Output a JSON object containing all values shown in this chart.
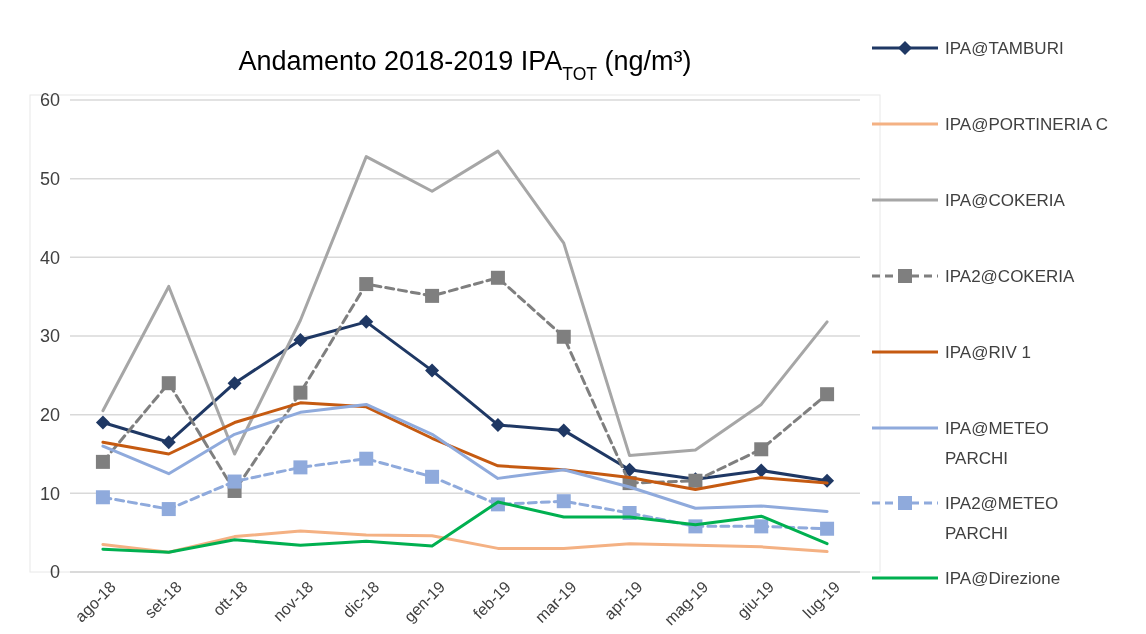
{
  "chart_data": {
    "type": "line",
    "title": "Andamento 2018-2019 IPA$_{TOT}$ (ng/m³)",
    "categories": [
      "ago-18",
      "set-18",
      "ott-18",
      "nov-18",
      "dic-18",
      "gen-19",
      "feb-19",
      "mar-19",
      "apr-19",
      "mag-19",
      "giu-19",
      "lug-19"
    ],
    "ylim": [
      0,
      60
    ],
    "yticks": [
      0,
      10,
      20,
      30,
      40,
      50,
      60
    ],
    "grid": "y",
    "legend": "right",
    "series": [
      {
        "name": "IPA@TAMBURI",
        "color": "#1f3864",
        "marker": "diamond",
        "line_style": "solid",
        "values": [
          19,
          16.5,
          24,
          29.5,
          31.8,
          25.6,
          18.7,
          18,
          13,
          11.8,
          12.9,
          11.6
        ]
      },
      {
        "name": "IPA@PORTINERIA C",
        "color": "#f4b183",
        "marker": "none",
        "line_style": "solid",
        "values": [
          3.5,
          2.5,
          4.5,
          5.2,
          4.7,
          4.6,
          3,
          3,
          3.6,
          3.4,
          3.2,
          2.6
        ]
      },
      {
        "name": "IPA@COKERIA",
        "color": "#a6a6a6",
        "marker": "none",
        "line_style": "solid",
        "values": [
          20.5,
          36.3,
          15,
          32,
          52.8,
          48.4,
          53.5,
          41.8,
          14.8,
          15.5,
          21.3,
          31.8
        ]
      },
      {
        "name": "IPA2@COKERIA",
        "color": "#7f7f7f",
        "marker": "square",
        "line_style": "dashed",
        "values": [
          14,
          24,
          10.3,
          22.8,
          36.6,
          35.1,
          37.4,
          29.9,
          11.3,
          11.6,
          15.6,
          22.6
        ]
      },
      {
        "name": "IPA@RIV 1",
        "color": "#c55a11",
        "marker": "none",
        "line_style": "solid",
        "values": [
          16.5,
          15,
          19,
          21.5,
          21,
          17,
          13.5,
          13,
          12,
          10.5,
          12,
          11.3
        ]
      },
      {
        "name": "IPA@METEO PARCHI",
        "color": "#8faadc",
        "marker": "none",
        "line_style": "solid",
        "values": [
          16,
          12.5,
          17.5,
          20.3,
          21.3,
          17.5,
          11.9,
          13,
          10.8,
          8.1,
          8.4,
          7.7
        ]
      },
      {
        "name": "IPA2@METEO PARCHI",
        "color": "#8faadc",
        "marker": "square",
        "line_style": "dashed",
        "values": [
          9.5,
          8,
          11.5,
          13.3,
          14.4,
          12.1,
          8.6,
          9,
          7.5,
          5.8,
          5.8,
          5.5
        ]
      },
      {
        "name": "IPA@Direzione",
        "color": "#00b050",
        "marker": "none",
        "line_style": "solid",
        "values": [
          2.9,
          2.5,
          4.1,
          3.4,
          3.9,
          3.3,
          8.9,
          7,
          7,
          6,
          7.1,
          3.6
        ]
      }
    ]
  }
}
